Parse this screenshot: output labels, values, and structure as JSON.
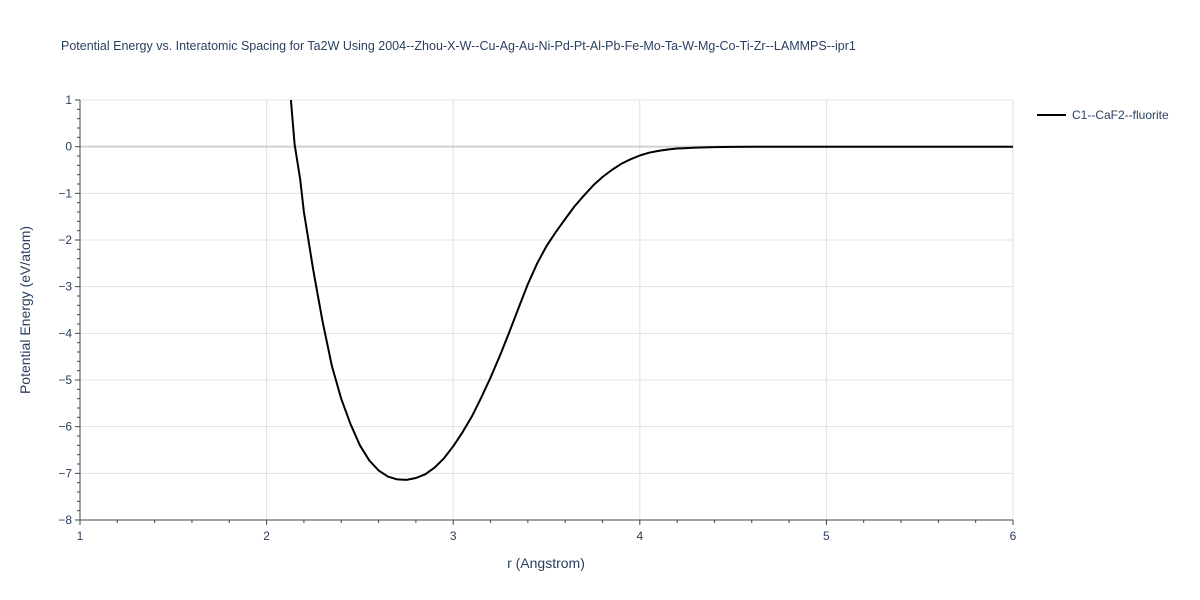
{
  "chart_data": {
    "type": "line",
    "title": "Potential Energy vs. Interatomic Spacing for Ta2W Using 2004--Zhou-X-W--Cu-Ag-Au-Ni-Pd-Pt-Al-Pb-Fe-Mo-Ta-W-Mg-Co-Ti-Zr--LAMMPS--ipr1",
    "xlabel": "r (Angstrom)",
    "ylabel": "Potential Energy (eV/atom)",
    "xlim": [
      1,
      6
    ],
    "ylim": [
      -8,
      1
    ],
    "x_ticks": [
      1,
      2,
      3,
      4,
      5,
      6
    ],
    "y_ticks": [
      1,
      0,
      -1,
      -2,
      -3,
      -4,
      -5,
      -6,
      -7,
      -8
    ],
    "x_tick_labels": [
      "1",
      "2",
      "3",
      "4",
      "5",
      "6"
    ],
    "y_tick_labels": [
      "1",
      "0",
      "−1",
      "−2",
      "−3",
      "−4",
      "−5",
      "−6",
      "−7",
      "−8"
    ],
    "grid": true,
    "legend_position": "top-right",
    "series": [
      {
        "name": "C1--CaF2--fluorite",
        "color": "#000000",
        "x": [
          2.13,
          2.15,
          2.18,
          2.2,
          2.25,
          2.3,
          2.35,
          2.4,
          2.45,
          2.5,
          2.55,
          2.6,
          2.65,
          2.7,
          2.75,
          2.8,
          2.85,
          2.9,
          2.95,
          3.0,
          3.05,
          3.1,
          3.15,
          3.2,
          3.25,
          3.3,
          3.35,
          3.4,
          3.45,
          3.5,
          3.55,
          3.6,
          3.65,
          3.7,
          3.75,
          3.8,
          3.85,
          3.9,
          3.95,
          4.0,
          4.05,
          4.1,
          4.15,
          4.2,
          4.25,
          4.3,
          4.4,
          4.5,
          4.6,
          4.7,
          4.8,
          5.0,
          5.2,
          5.5,
          6.0
        ],
        "y": [
          1.0,
          0.05,
          -0.7,
          -1.4,
          -2.65,
          -3.75,
          -4.7,
          -5.4,
          -5.95,
          -6.4,
          -6.72,
          -6.94,
          -7.07,
          -7.13,
          -7.14,
          -7.1,
          -7.02,
          -6.88,
          -6.68,
          -6.42,
          -6.12,
          -5.78,
          -5.38,
          -4.95,
          -4.48,
          -3.98,
          -3.46,
          -2.95,
          -2.5,
          -2.13,
          -1.83,
          -1.55,
          -1.28,
          -1.05,
          -0.83,
          -0.65,
          -0.5,
          -0.37,
          -0.27,
          -0.19,
          -0.13,
          -0.09,
          -0.06,
          -0.04,
          -0.03,
          -0.02,
          -0.01,
          -0.005,
          0.0,
          0.0,
          0.0,
          0.0,
          0.0,
          0.0,
          0.0
        ]
      }
    ]
  }
}
